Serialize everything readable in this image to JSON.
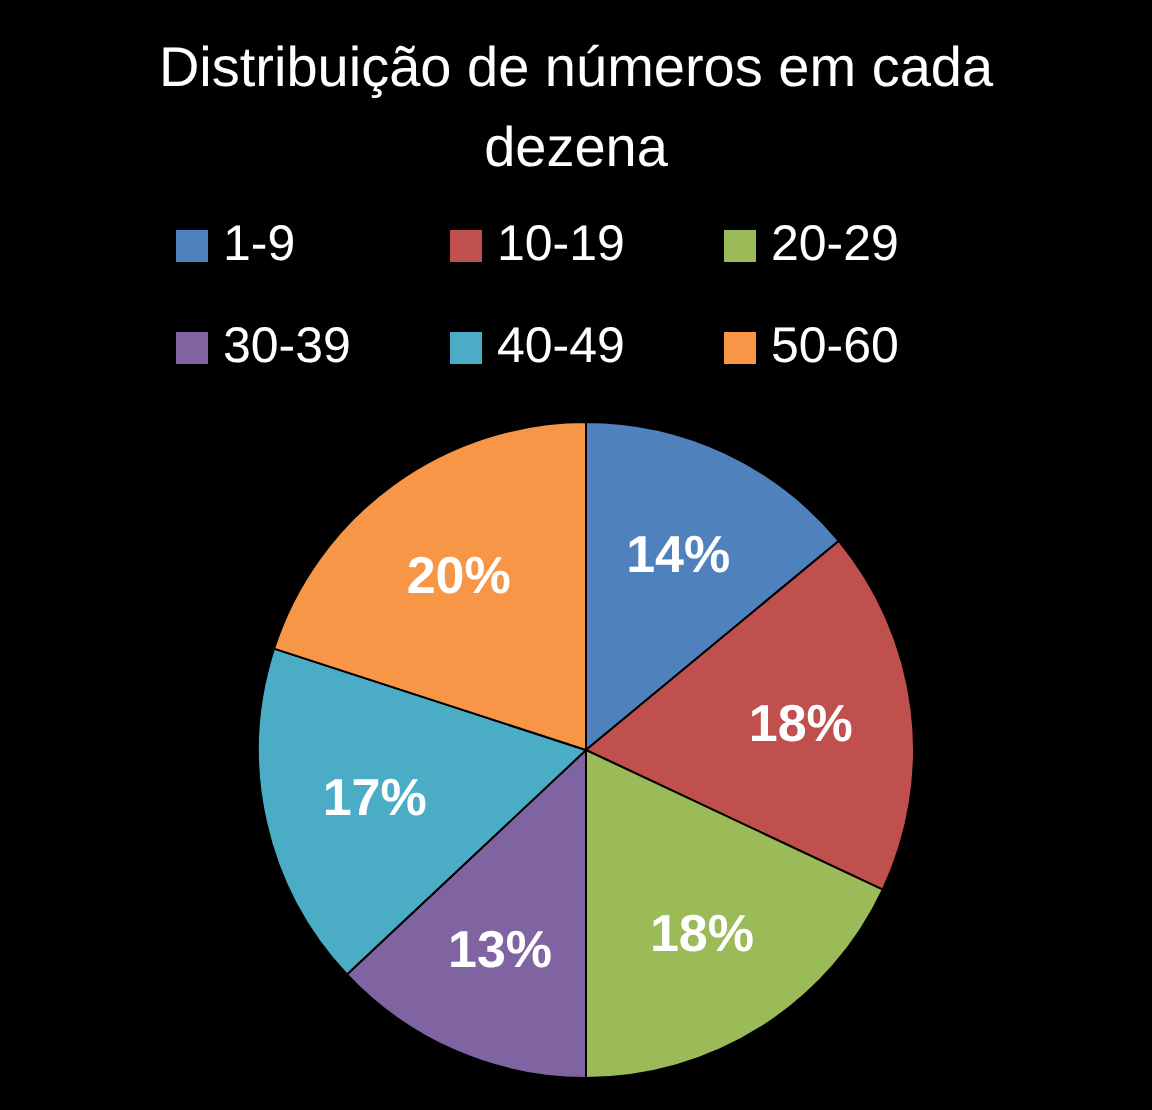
{
  "chart_data": {
    "type": "pie",
    "title": "Distribuição de números em cada dezena",
    "categories": [
      "1-9",
      "10-19",
      "20-29",
      "30-39",
      "40-49",
      "50-60"
    ],
    "values": [
      14,
      18,
      18,
      13,
      17,
      20
    ],
    "colors": [
      "#4f81bd",
      "#c0504d",
      "#9bbb59",
      "#8064a2",
      "#4bacc6",
      "#f79646"
    ],
    "value_labels": [
      "14%",
      "18%",
      "18%",
      "13%",
      "17%",
      "20%"
    ],
    "legend": "top"
  }
}
